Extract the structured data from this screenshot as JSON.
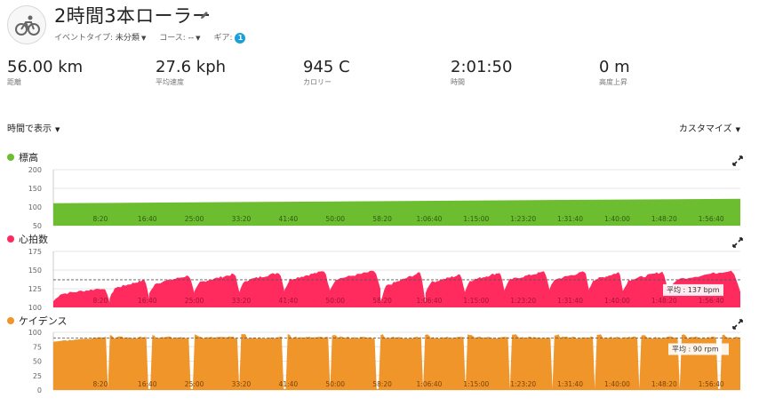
{
  "activity": {
    "title": "2時間3本ローラー",
    "event_type_label": "イベントタイプ:",
    "event_type_value": "未分類",
    "course_label": "コース:",
    "course_value": "--",
    "gear_label": "ギア:",
    "gear_count": "1"
  },
  "stats": [
    {
      "value": "56.00 km",
      "label": "距離"
    },
    {
      "value": "27.6 kph",
      "label": "平均速度"
    },
    {
      "value": "945 C",
      "label": "カロリー"
    },
    {
      "value": "2:01:50",
      "label": "時間"
    },
    {
      "value": "0 m",
      "label": "高度上昇"
    }
  ],
  "controls": {
    "view_mode": "時間で表示",
    "customize": "カスタマイズ"
  },
  "colors": {
    "elevation": "#6cbd2f",
    "heart_rate": "#ff2a5e",
    "cadence": "#f0952a",
    "badge": "#1a9fd8"
  },
  "icons": [
    "bicycle-icon",
    "pencil-icon",
    "expand-icon"
  ],
  "chart_data": [
    {
      "type": "area",
      "title": "標高",
      "ylim": [
        50,
        200
      ],
      "yticks": [
        "200",
        "150",
        "100",
        "50"
      ],
      "xticks": [
        "8:20",
        "16:40",
        "25:00",
        "33:20",
        "41:40",
        "50:00",
        "58:20",
        "1:06:40",
        "1:15:00",
        "1:23:20",
        "1:31:40",
        "1:40:00",
        "1:48:20",
        "1:56:40"
      ],
      "x_minutes": [
        0,
        121.8
      ],
      "y_start": 110,
      "y_end": 122,
      "grid": true
    },
    {
      "type": "area",
      "title": "心拍数",
      "ylim": [
        100,
        175
      ],
      "yticks": [
        "175",
        "150",
        "125",
        "100"
      ],
      "xticks": [
        "8:20",
        "16:40",
        "25:00",
        "33:20",
        "41:40",
        "50:00",
        "58:20",
        "1:06:40",
        "1:15:00",
        "1:23:20",
        "1:31:40",
        "1:40:00",
        "1:48:20",
        "1:56:40"
      ],
      "average": 137,
      "average_label": "平均 : 137 bpm",
      "interval_start_minutes": [
        0,
        10,
        17,
        25,
        33,
        41,
        49,
        58,
        66,
        73,
        80,
        88,
        95,
        101,
        109
      ],
      "interval_peak_bpm": [
        126,
        137,
        143,
        145,
        147,
        149,
        149,
        147,
        144,
        147,
        148,
        148,
        147,
        148,
        150
      ],
      "interval_low_bpm": [
        108,
        112,
        118,
        120,
        122,
        124,
        124,
        106,
        120,
        122,
        124,
        124,
        124,
        122,
        122
      ],
      "grid": true
    },
    {
      "type": "area",
      "title": "ケイデンス",
      "ylim": [
        0,
        100
      ],
      "yticks": [
        "100",
        "75",
        "50",
        "25",
        "0"
      ],
      "xticks": [
        "8:20",
        "16:40",
        "25:00",
        "33:20",
        "41:40",
        "50:00",
        "58:20",
        "1:06:40",
        "1:15:00",
        "1:23:20",
        "1:31:40",
        "1:40:00",
        "1:48:20",
        "1:56:40"
      ],
      "average": 90,
      "average_label": "平均 : 90 rpm",
      "base_rpm": 91,
      "block_peak_rpm": 97,
      "dropout_minutes": [
        9.5,
        17,
        24.5,
        33,
        41,
        49,
        57.5,
        65.5,
        73,
        81,
        88.5,
        96,
        104,
        111,
        118
      ],
      "grid": true
    }
  ]
}
